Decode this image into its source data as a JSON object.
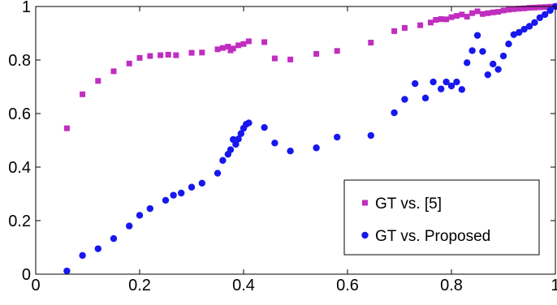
{
  "chart_data": {
    "type": "scatter",
    "title": "",
    "xlabel": "",
    "ylabel": "",
    "xlim": [
      0,
      1
    ],
    "ylim": [
      0,
      1
    ],
    "grid": false,
    "legend_position": "bottom-right",
    "x_ticks": [
      "0",
      "0.2",
      "0.4",
      "0.6",
      "0.8",
      "1"
    ],
    "y_ticks": [
      "0",
      "0.2",
      "0.4",
      "0.6",
      "0.8",
      "1"
    ],
    "series": [
      {
        "name": "GT vs. [5]",
        "marker": "square",
        "color": "#c02ec0",
        "x": [
          0.06,
          0.09,
          0.12,
          0.15,
          0.18,
          0.2,
          0.22,
          0.24,
          0.255,
          0.27,
          0.3,
          0.32,
          0.35,
          0.36,
          0.37,
          0.375,
          0.38,
          0.39,
          0.4,
          0.41,
          0.44,
          0.46,
          0.49,
          0.54,
          0.58,
          0.645,
          0.69,
          0.71,
          0.74,
          0.76,
          0.77,
          0.78,
          0.79,
          0.8,
          0.81,
          0.82,
          0.83,
          0.84,
          0.85,
          0.86,
          0.87,
          0.88,
          0.89,
          0.9,
          0.91,
          0.92,
          0.93,
          0.94,
          0.95,
          0.96,
          0.97,
          0.98,
          0.99,
          1.0
        ],
        "y": [
          0.545,
          0.672,
          0.722,
          0.758,
          0.787,
          0.808,
          0.815,
          0.818,
          0.82,
          0.818,
          0.827,
          0.828,
          0.84,
          0.845,
          0.85,
          0.836,
          0.843,
          0.855,
          0.86,
          0.87,
          0.867,
          0.806,
          0.802,
          0.823,
          0.834,
          0.865,
          0.908,
          0.92,
          0.93,
          0.94,
          0.95,
          0.953,
          0.952,
          0.96,
          0.965,
          0.97,
          0.962,
          0.975,
          0.982,
          0.972,
          0.975,
          0.978,
          0.98,
          0.985,
          0.988,
          0.99,
          0.992,
          0.993,
          0.995,
          0.996,
          0.997,
          0.998,
          0.999,
          1.0
        ]
      },
      {
        "name": "GT vs. Proposed",
        "marker": "circle",
        "color": "#1717ee",
        "x": [
          0.06,
          0.09,
          0.12,
          0.15,
          0.18,
          0.2,
          0.22,
          0.25,
          0.265,
          0.28,
          0.3,
          0.32,
          0.35,
          0.36,
          0.37,
          0.375,
          0.38,
          0.385,
          0.39,
          0.395,
          0.4,
          0.405,
          0.41,
          0.44,
          0.46,
          0.49,
          0.54,
          0.58,
          0.645,
          0.69,
          0.71,
          0.73,
          0.75,
          0.765,
          0.78,
          0.79,
          0.8,
          0.81,
          0.82,
          0.83,
          0.84,
          0.85,
          0.86,
          0.87,
          0.88,
          0.89,
          0.9,
          0.91,
          0.92,
          0.93,
          0.94,
          0.95,
          0.96,
          0.97,
          0.98,
          0.99,
          1.0
        ],
        "y": [
          0.012,
          0.07,
          0.095,
          0.133,
          0.18,
          0.22,
          0.245,
          0.276,
          0.295,
          0.303,
          0.325,
          0.34,
          0.377,
          0.425,
          0.448,
          0.465,
          0.503,
          0.485,
          0.505,
          0.525,
          0.545,
          0.56,
          0.565,
          0.548,
          0.49,
          0.46,
          0.472,
          0.512,
          0.518,
          0.603,
          0.653,
          0.712,
          0.658,
          0.718,
          0.692,
          0.718,
          0.703,
          0.718,
          0.69,
          0.79,
          0.835,
          0.892,
          0.832,
          0.745,
          0.785,
          0.765,
          0.815,
          0.86,
          0.895,
          0.903,
          0.915,
          0.926,
          0.94,
          0.958,
          0.97,
          0.985,
          1.0
        ]
      }
    ]
  }
}
